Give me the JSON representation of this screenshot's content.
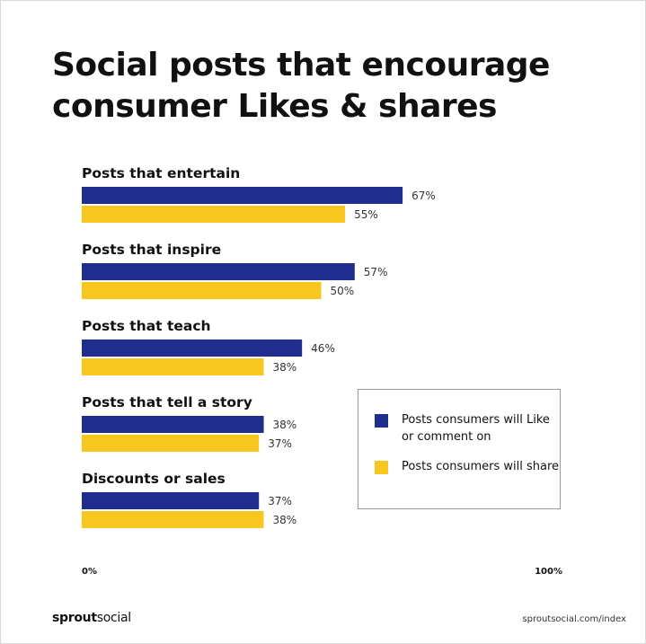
{
  "title": "Social posts that encourage consumer Likes & shares",
  "chart_data": {
    "type": "bar",
    "orientation": "horizontal",
    "categories": [
      "Posts that entertain",
      "Posts that inspire",
      "Posts that teach",
      "Posts that tell a story",
      "Discounts or sales"
    ],
    "series": [
      {
        "name": "Posts consumers will Like or comment on",
        "color": "#1f2d8f",
        "values": [
          67,
          57,
          46,
          38,
          37
        ],
        "labels": [
          "67%",
          "57%",
          "46%",
          "38%",
          "37%"
        ]
      },
      {
        "name": "Posts consumers will share",
        "color": "#f7c720",
        "values": [
          55,
          50,
          38,
          37,
          38
        ],
        "labels": [
          "55%",
          "50%",
          "38%",
          "37%",
          "38%"
        ]
      }
    ],
    "xlim": [
      0,
      100
    ],
    "x_tick_labels": [
      "0%",
      "100%"
    ],
    "legend_position": "right-middle",
    "grid": false
  },
  "footer": {
    "brand_bold": "sprout",
    "brand_regular": "social",
    "source": "sproutsocial.com/index"
  }
}
